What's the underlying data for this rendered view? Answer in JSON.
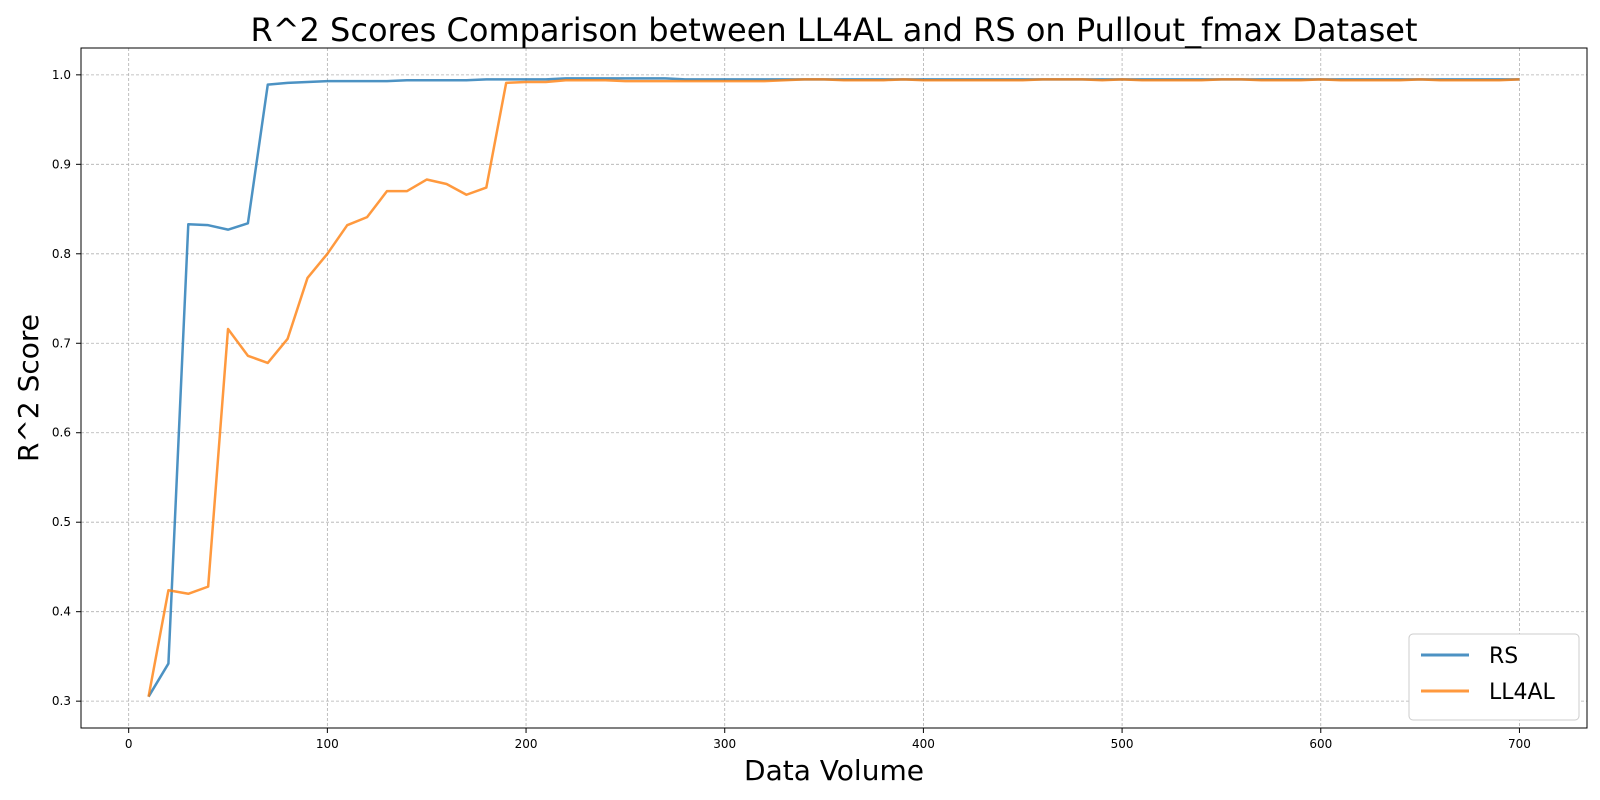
{
  "chart_data": {
    "type": "line",
    "title": "R^2 Scores Comparison between LL4AL and RS on Pullout_fmax Dataset",
    "xlabel": "Data Volume",
    "ylabel": "R^2 Score",
    "xlim": [
      -24,
      734
    ],
    "ylim": [
      0.27,
      1.03
    ],
    "xticks": [
      0,
      100,
      200,
      300,
      400,
      500,
      600,
      700
    ],
    "yticks": [
      0.3,
      0.4,
      0.5,
      0.6,
      0.7,
      0.8,
      0.9,
      1.0
    ],
    "grid": true,
    "legend_position": "bottom-right",
    "x": [
      10,
      20,
      30,
      40,
      50,
      60,
      70,
      80,
      90,
      100,
      110,
      120,
      130,
      140,
      150,
      160,
      170,
      180,
      190,
      200,
      210,
      220,
      230,
      240,
      250,
      260,
      270,
      280,
      290,
      300,
      310,
      320,
      330,
      340,
      350,
      360,
      370,
      380,
      390,
      400,
      410,
      420,
      430,
      440,
      450,
      460,
      470,
      480,
      490,
      500,
      510,
      520,
      530,
      540,
      550,
      560,
      570,
      580,
      590,
      600,
      610,
      620,
      630,
      640,
      650,
      660,
      670,
      680,
      690,
      700
    ],
    "series": [
      {
        "name": "RS",
        "color": "#1f77b4",
        "values": [
          0.305,
          0.342,
          0.833,
          0.832,
          0.827,
          0.834,
          0.989,
          0.991,
          0.992,
          0.993,
          0.993,
          0.993,
          0.993,
          0.994,
          0.994,
          0.994,
          0.994,
          0.995,
          0.995,
          0.995,
          0.995,
          0.996,
          0.996,
          0.996,
          0.996,
          0.996,
          0.996,
          0.995,
          0.995,
          0.995,
          0.995,
          0.995,
          0.995,
          0.995,
          0.995,
          0.995,
          0.995,
          0.995,
          0.995,
          0.995,
          0.995,
          0.995,
          0.995,
          0.995,
          0.995,
          0.995,
          0.995,
          0.995,
          0.995,
          0.995,
          0.995,
          0.995,
          0.995,
          0.995,
          0.995,
          0.995,
          0.995,
          0.995,
          0.995,
          0.995,
          0.995,
          0.995,
          0.995,
          0.995,
          0.995,
          0.995,
          0.995,
          0.995,
          0.995,
          0.995
        ]
      },
      {
        "name": "LL4AL",
        "color": "#ff7f0e",
        "values": [
          0.305,
          0.424,
          0.42,
          0.428,
          0.716,
          0.686,
          0.678,
          0.705,
          0.773,
          0.8,
          0.832,
          0.841,
          0.87,
          0.87,
          0.883,
          0.878,
          0.866,
          0.874,
          0.991,
          0.992,
          0.992,
          0.994,
          0.994,
          0.994,
          0.993,
          0.993,
          0.993,
          0.993,
          0.993,
          0.993,
          0.993,
          0.993,
          0.994,
          0.995,
          0.995,
          0.994,
          0.994,
          0.994,
          0.995,
          0.994,
          0.994,
          0.994,
          0.994,
          0.994,
          0.994,
          0.995,
          0.995,
          0.995,
          0.994,
          0.995,
          0.994,
          0.994,
          0.994,
          0.994,
          0.995,
          0.995,
          0.994,
          0.994,
          0.994,
          0.995,
          0.994,
          0.994,
          0.994,
          0.994,
          0.995,
          0.994,
          0.994,
          0.994,
          0.994,
          0.995
        ]
      }
    ]
  }
}
